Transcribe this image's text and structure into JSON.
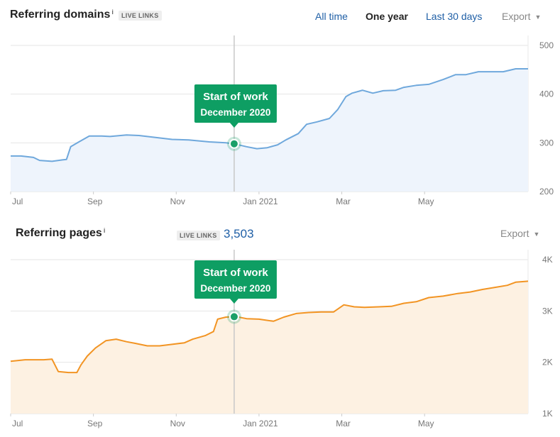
{
  "domains": {
    "title": "Referring domains",
    "info": "i",
    "badge": "LIVE LINKS",
    "range_tabs": [
      {
        "label": "All time",
        "active": false
      },
      {
        "label": "One year",
        "active": true
      },
      {
        "label": "Last 30 days",
        "active": false
      }
    ],
    "export_label": "Export",
    "caret": "▼"
  },
  "pages": {
    "title": "Referring pages",
    "info": "i",
    "badge": "LIVE LINKS",
    "count": "3,503",
    "export_label": "Export",
    "caret": "▼"
  },
  "annotation": {
    "title": "Start of work",
    "subtitle": "December 2020"
  },
  "colors": {
    "domains_line": "#6fa8dc",
    "domains_fill": "#eef4fc",
    "pages_line": "#f29423",
    "pages_fill": "#fdf1e2",
    "marker": "#1aa068",
    "tooltip": "#0e9e63",
    "grid": "#e5e5e5",
    "link": "#1f5fa6"
  },
  "chart_data": [
    {
      "type": "area",
      "title": "Referring domains",
      "x_ticks": [
        "Jul",
        "Sep",
        "Nov",
        "Jan 2021",
        "Mar",
        "May"
      ],
      "y_ticks": [
        200,
        300,
        400,
        500
      ],
      "ylim": [
        200,
        500
      ],
      "grid": true,
      "annotation_x": 5.4,
      "series": [
        {
          "points": [
            [
              0,
              273
            ],
            [
              0.25,
              273
            ],
            [
              0.55,
              270
            ],
            [
              0.7,
              264
            ],
            [
              1.0,
              262
            ],
            [
              1.25,
              265
            ],
            [
              1.35,
              266
            ],
            [
              1.45,
              292
            ],
            [
              1.65,
              302
            ],
            [
              1.9,
              314
            ],
            [
              2.2,
              314
            ],
            [
              2.4,
              313
            ],
            [
              2.8,
              316
            ],
            [
              3.1,
              315
            ],
            [
              3.5,
              311
            ],
            [
              3.9,
              307
            ],
            [
              4.3,
              306
            ],
            [
              4.8,
              302
            ],
            [
              5.2,
              300
            ],
            [
              5.4,
              298
            ],
            [
              5.7,
              292
            ],
            [
              5.95,
              288
            ],
            [
              6.2,
              290
            ],
            [
              6.45,
              296
            ],
            [
              6.65,
              306
            ],
            [
              6.95,
              319
            ],
            [
              7.15,
              338
            ],
            [
              7.4,
              343
            ],
            [
              7.7,
              350
            ],
            [
              7.9,
              368
            ],
            [
              8.1,
              395
            ],
            [
              8.25,
              402
            ],
            [
              8.5,
              408
            ],
            [
              8.75,
              402
            ],
            [
              9.0,
              407
            ],
            [
              9.3,
              408
            ],
            [
              9.5,
              414
            ],
            [
              9.8,
              418
            ],
            [
              10.1,
              420
            ],
            [
              10.45,
              430
            ],
            [
              10.75,
              440
            ],
            [
              11.0,
              440
            ],
            [
              11.3,
              446
            ],
            [
              11.6,
              446
            ],
            [
              11.9,
              446
            ],
            [
              12.2,
              452
            ],
            [
              12.5,
              452
            ]
          ]
        }
      ]
    },
    {
      "type": "area",
      "title": "Referring pages",
      "x_ticks": [
        "Jul",
        "Sep",
        "Nov",
        "Jan 2021",
        "Mar",
        "May"
      ],
      "y_ticks": [
        "1K",
        "2K",
        "3K",
        "4K"
      ],
      "ylim": [
        1000,
        4000
      ],
      "grid": true,
      "annotation_x": 5.4,
      "series": [
        {
          "points": [
            [
              0,
              2020
            ],
            [
              0.35,
              2050
            ],
            [
              0.8,
              2050
            ],
            [
              1.0,
              2060
            ],
            [
              1.15,
              1820
            ],
            [
              1.4,
              1800
            ],
            [
              1.6,
              1800
            ],
            [
              1.7,
              1950
            ],
            [
              1.85,
              2120
            ],
            [
              2.05,
              2280
            ],
            [
              2.3,
              2420
            ],
            [
              2.55,
              2450
            ],
            [
              2.8,
              2400
            ],
            [
              3.0,
              2370
            ],
            [
              3.3,
              2320
            ],
            [
              3.6,
              2320
            ],
            [
              3.9,
              2350
            ],
            [
              4.2,
              2380
            ],
            [
              4.4,
              2450
            ],
            [
              4.7,
              2520
            ],
            [
              4.9,
              2600
            ],
            [
              5.0,
              2840
            ],
            [
              5.2,
              2880
            ],
            [
              5.45,
              2890
            ],
            [
              5.7,
              2850
            ],
            [
              6.0,
              2840
            ],
            [
              6.35,
              2800
            ],
            [
              6.6,
              2880
            ],
            [
              6.9,
              2950
            ],
            [
              7.2,
              2970
            ],
            [
              7.5,
              2980
            ],
            [
              7.8,
              2980
            ],
            [
              8.05,
              3120
            ],
            [
              8.3,
              3080
            ],
            [
              8.55,
              3070
            ],
            [
              8.9,
              3080
            ],
            [
              9.2,
              3090
            ],
            [
              9.5,
              3150
            ],
            [
              9.8,
              3180
            ],
            [
              10.1,
              3260
            ],
            [
              10.45,
              3290
            ],
            [
              10.8,
              3340
            ],
            [
              11.1,
              3370
            ],
            [
              11.4,
              3420
            ],
            [
              11.7,
              3460
            ],
            [
              12.0,
              3500
            ],
            [
              12.2,
              3560
            ],
            [
              12.5,
              3580
            ]
          ]
        }
      ]
    }
  ]
}
